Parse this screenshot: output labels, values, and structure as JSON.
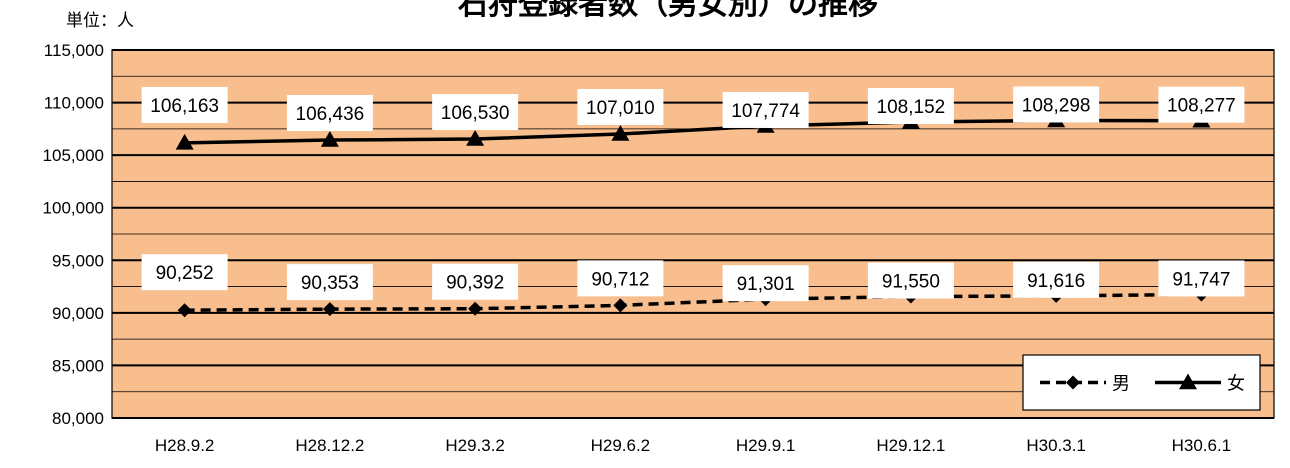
{
  "chart_data": {
    "type": "line",
    "title": "石狩登録者数（男女別）の推移",
    "unit_label": "単位：人",
    "categories": [
      "H28.9.2",
      "H28.12.2",
      "H29.3.2",
      "H29.6.2",
      "H29.9.1",
      "H29.12.1",
      "H30.3.1",
      "H30.6.1"
    ],
    "ylim": [
      80000,
      115000
    ],
    "yticks": [
      80000,
      85000,
      90000,
      95000,
      100000,
      105000,
      110000,
      115000
    ],
    "ytick_labels": [
      "80,000",
      "85,000",
      "90,000",
      "95,000",
      "100,000",
      "105,000",
      "110,000",
      "115,000"
    ],
    "grid": true,
    "legend_position": "bottom-right",
    "background_color": "#F8BE8D",
    "series": [
      {
        "name": "男",
        "style": "dashed",
        "marker": "diamond",
        "values": [
          90252,
          90353,
          90392,
          90712,
          91301,
          91550,
          91616,
          91747
        ],
        "labels": [
          "90,252",
          "90,353",
          "90,392",
          "90,712",
          "91,301",
          "91,550",
          "91,616",
          "91,747"
        ]
      },
      {
        "name": "女",
        "style": "solid",
        "marker": "triangle",
        "values": [
          106163,
          106436,
          106530,
          107010,
          107774,
          108152,
          108298,
          108277
        ],
        "labels": [
          "106,163",
          "106,436",
          "106,530",
          "107,010",
          "107,774",
          "108,152",
          "108,298",
          "108,277"
        ]
      }
    ]
  }
}
